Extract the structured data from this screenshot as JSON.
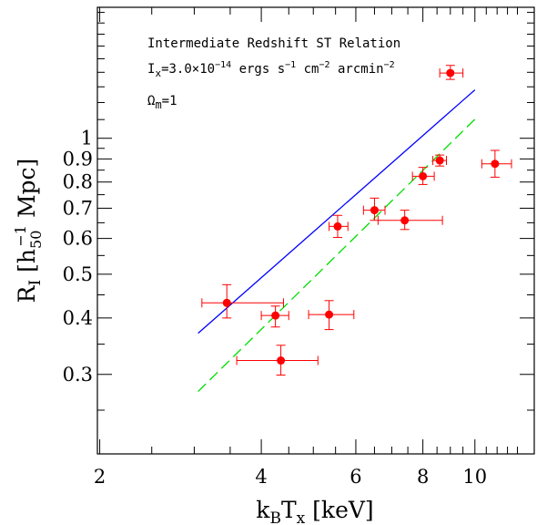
{
  "chart_data": {
    "type": "scatter",
    "title": "Intermediate Redshift ST Relation",
    "annotations": {
      "line2_main": "I",
      "line2_sub": "x",
      "line2_rest": "=3.0×10",
      "line2_exp": "−14",
      "line2_tail": " ergs s",
      "line2_exp2": "−1",
      "line2_tail2": " cm",
      "line2_exp3": "−2",
      "line2_tail3": " arcmin",
      "line2_exp4": "−2",
      "line3_main": "Ω",
      "line3_sub": "m",
      "line3_rest": "=1"
    },
    "xlabel": {
      "main1": "k",
      "sub1": "B",
      "main2": "T",
      "sub2": "x",
      "tail": " [keV]"
    },
    "ylabel": {
      "main": "R",
      "sub": "I",
      "mid": " [h",
      "sub2": "50",
      "sup2": "−1",
      "tail": " Mpc]"
    },
    "x_scale": "log",
    "y_scale": "log",
    "xlim": [
      1.98,
      12.9
    ],
    "ylim": [
      0.2,
      1.95
    ],
    "x_ticks": [
      2,
      4,
      6,
      8,
      10
    ],
    "y_ticks": [
      0.3,
      0.4,
      0.5,
      0.6,
      0.7,
      0.8,
      0.9,
      1
    ],
    "x_tick_labels": [
      "2",
      "4",
      "6",
      "8",
      "10"
    ],
    "y_tick_labels": [
      "0.3",
      "0.4",
      "0.5",
      "0.6",
      "0.7",
      "0.8",
      "0.9",
      "1"
    ],
    "points": [
      {
        "x": 3.45,
        "y": 0.432,
        "xerr": [
          3.1,
          4.4
        ],
        "yerr": [
          0.4,
          0.474
        ]
      },
      {
        "x": 4.25,
        "y": 0.405,
        "xerr": [
          4.0,
          4.5
        ],
        "yerr": [
          0.382,
          0.425
        ]
      },
      {
        "x": 4.35,
        "y": 0.322,
        "xerr": [
          3.6,
          5.1
        ],
        "yerr": [
          0.299,
          0.348
        ]
      },
      {
        "x": 5.35,
        "y": 0.407,
        "xerr": [
          4.9,
          5.95
        ],
        "yerr": [
          0.377,
          0.437
        ]
      },
      {
        "x": 5.55,
        "y": 0.638,
        "xerr": [
          5.35,
          5.8
        ],
        "yerr": [
          0.603,
          0.675
        ]
      },
      {
        "x": 6.5,
        "y": 0.693,
        "xerr": [
          6.2,
          6.8
        ],
        "yerr": [
          0.658,
          0.737
        ]
      },
      {
        "x": 7.4,
        "y": 0.658,
        "xerr": [
          6.6,
          8.7
        ],
        "yerr": [
          0.628,
          0.693
        ]
      },
      {
        "x": 8.0,
        "y": 0.824,
        "xerr": [
          7.65,
          8.4
        ],
        "yerr": [
          0.79,
          0.862
        ]
      },
      {
        "x": 8.6,
        "y": 0.893,
        "xerr": [
          8.35,
          8.85
        ],
        "yerr": [
          0.868,
          0.918
        ]
      },
      {
        "x": 9.0,
        "y": 1.395,
        "xerr": [
          8.6,
          9.5
        ],
        "yerr": [
          1.35,
          1.45
        ]
      },
      {
        "x": 10.9,
        "y": 0.878,
        "xerr": [
          10.3,
          11.7
        ],
        "yerr": [
          0.82,
          0.94
        ]
      }
    ],
    "series": [
      {
        "style": "solid",
        "color": "#0000ff",
        "x": [
          3.05,
          10.0
        ],
        "y": [
          0.37,
          1.28
        ]
      },
      {
        "style": "dashed",
        "color": "#00dd00",
        "x": [
          3.05,
          10.0
        ],
        "y": [
          0.275,
          1.102
        ]
      }
    ],
    "colors": {
      "points": "#ff0000",
      "errorbars": "#ff0000",
      "axes": "#000000"
    }
  }
}
